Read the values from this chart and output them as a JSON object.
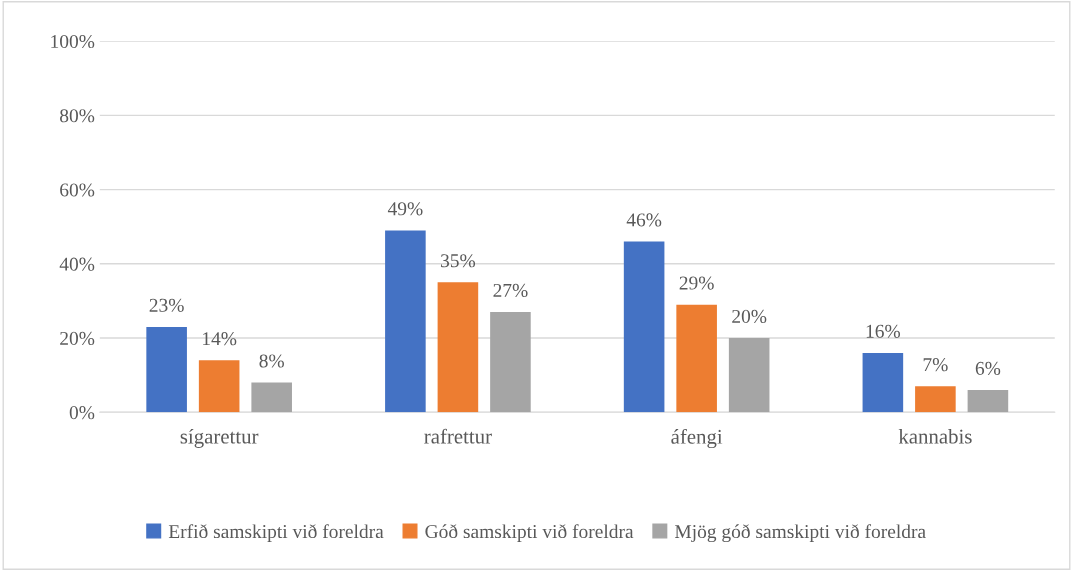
{
  "chart_data": {
    "type": "bar",
    "categories": [
      "sígarettur",
      "rafrettur",
      "áfengi",
      "kannabis"
    ],
    "series": [
      {
        "name": "Erfið samskipti við foreldra",
        "color": "#4472c4",
        "values": [
          23,
          49,
          46,
          16
        ],
        "value_labels": [
          "23%",
          "49%",
          "46%",
          "16%"
        ]
      },
      {
        "name": "Góð samskipti við foreldra",
        "color": "#ed7d31",
        "values": [
          14,
          35,
          29,
          7
        ],
        "value_labels": [
          "14%",
          "35%",
          "29%",
          "7%"
        ]
      },
      {
        "name": "Mjög góð samskipti við foreldra",
        "color": "#a5a5a5",
        "values": [
          8,
          27,
          20,
          6
        ],
        "value_labels": [
          "8%",
          "27%",
          "20%",
          "6%"
        ]
      }
    ],
    "ylim": [
      0,
      100
    ],
    "yticks": [
      {
        "value": 0,
        "label": "0%"
      },
      {
        "value": 20,
        "label": "20%"
      },
      {
        "value": 40,
        "label": "40%"
      },
      {
        "value": 60,
        "label": "60%"
      },
      {
        "value": 80,
        "label": "80%"
      },
      {
        "value": 100,
        "label": "100%"
      }
    ],
    "grid": "y",
    "legend": "bottom"
  }
}
